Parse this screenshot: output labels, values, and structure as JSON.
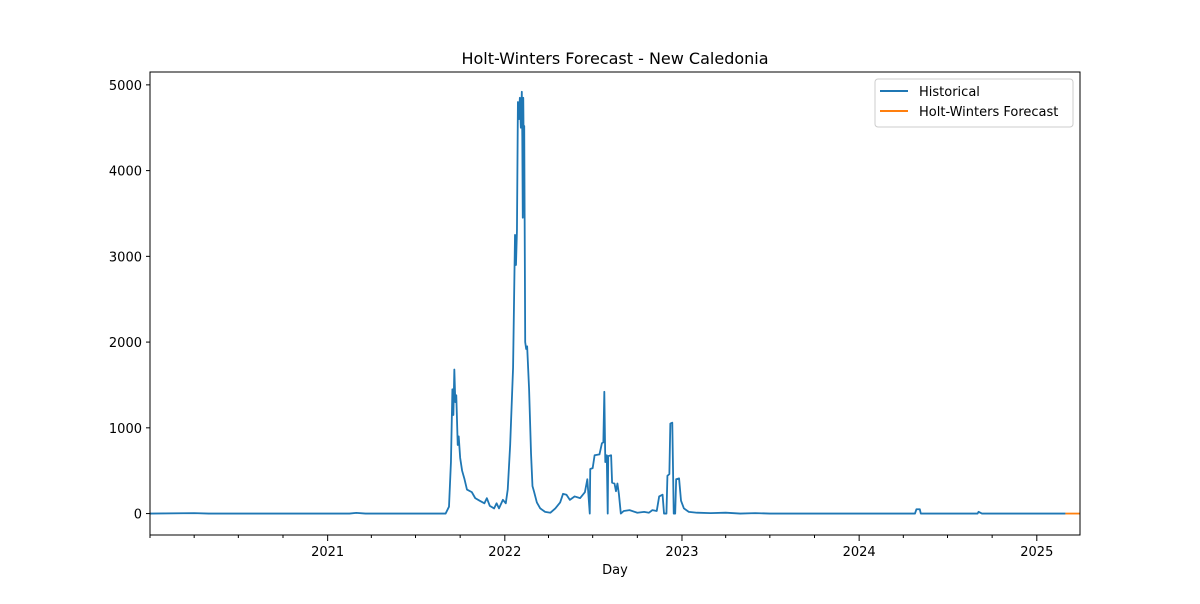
{
  "chart_data": {
    "type": "line",
    "title": "Holt-Winters Forecast - New Caledonia",
    "xlabel": "Day",
    "ylabel": "",
    "x_axis_type": "date",
    "xlim": [
      "2020-01-01",
      "2025-03-31"
    ],
    "ylim": [
      -250,
      5150
    ],
    "x_ticks": [
      {
        "date": "2021-01-01",
        "label": "2021"
      },
      {
        "date": "2022-01-01",
        "label": "2022"
      },
      {
        "date": "2023-01-01",
        "label": "2023"
      },
      {
        "date": "2024-01-01",
        "label": "2024"
      },
      {
        "date": "2025-01-01",
        "label": "2025"
      }
    ],
    "y_ticks": [
      0,
      1000,
      2000,
      3000,
      4000,
      5000
    ],
    "y_tick_labels": [
      "0",
      "1000",
      "2000",
      "3000",
      "4000",
      "5000"
    ],
    "grid": false,
    "legend_position": "top-right",
    "series": [
      {
        "name": "Historical",
        "color": "#1f77b4",
        "points": [
          [
            "2020-01-01",
            0
          ],
          [
            "2020-04-01",
            5
          ],
          [
            "2020-05-01",
            0
          ],
          [
            "2020-09-01",
            0
          ],
          [
            "2021-02-15",
            0
          ],
          [
            "2021-03-01",
            8
          ],
          [
            "2021-03-20",
            0
          ],
          [
            "2021-09-01",
            0
          ],
          [
            "2021-09-08",
            80
          ],
          [
            "2021-09-12",
            600
          ],
          [
            "2021-09-15",
            1450
          ],
          [
            "2021-09-17",
            1150
          ],
          [
            "2021-09-19",
            1680
          ],
          [
            "2021-09-21",
            1300
          ],
          [
            "2021-09-23",
            1380
          ],
          [
            "2021-09-26",
            800
          ],
          [
            "2021-09-28",
            900
          ],
          [
            "2021-10-01",
            650
          ],
          [
            "2021-10-05",
            500
          ],
          [
            "2021-10-10",
            400
          ],
          [
            "2021-10-15",
            280
          ],
          [
            "2021-10-25",
            250
          ],
          [
            "2021-11-01",
            180
          ],
          [
            "2021-11-10",
            150
          ],
          [
            "2021-11-20",
            120
          ],
          [
            "2021-11-25",
            180
          ],
          [
            "2021-12-01",
            90
          ],
          [
            "2021-12-10",
            60
          ],
          [
            "2021-12-15",
            120
          ],
          [
            "2021-12-20",
            60
          ],
          [
            "2021-12-28",
            160
          ],
          [
            "2022-01-03",
            120
          ],
          [
            "2022-01-07",
            280
          ],
          [
            "2022-01-12",
            800
          ],
          [
            "2022-01-18",
            1700
          ],
          [
            "2022-01-22",
            3250
          ],
          [
            "2022-01-24",
            2900
          ],
          [
            "2022-01-26",
            3300
          ],
          [
            "2022-01-28",
            4800
          ],
          [
            "2022-01-30",
            4600
          ],
          [
            "2022-02-01",
            4850
          ],
          [
            "2022-02-03",
            4500
          ],
          [
            "2022-02-05",
            4920
          ],
          [
            "2022-02-06",
            4400
          ],
          [
            "2022-02-07",
            3450
          ],
          [
            "2022-02-08",
            4850
          ],
          [
            "2022-02-09",
            4200
          ],
          [
            "2022-02-10",
            4520
          ],
          [
            "2022-02-12",
            2000
          ],
          [
            "2022-02-14",
            1920
          ],
          [
            "2022-02-16",
            1950
          ],
          [
            "2022-02-20",
            1450
          ],
          [
            "2022-02-24",
            700
          ],
          [
            "2022-02-27",
            320
          ],
          [
            "2022-03-02",
            260
          ],
          [
            "2022-03-08",
            130
          ],
          [
            "2022-03-15",
            60
          ],
          [
            "2022-03-25",
            20
          ],
          [
            "2022-04-05",
            10
          ],
          [
            "2022-04-15",
            60
          ],
          [
            "2022-04-25",
            130
          ],
          [
            "2022-05-01",
            230
          ],
          [
            "2022-05-08",
            220
          ],
          [
            "2022-05-15",
            160
          ],
          [
            "2022-05-25",
            200
          ],
          [
            "2022-06-05",
            180
          ],
          [
            "2022-06-15",
            250
          ],
          [
            "2022-06-20",
            400
          ],
          [
            "2022-06-25",
            0
          ],
          [
            "2022-06-26",
            520
          ],
          [
            "2022-07-01",
            530
          ],
          [
            "2022-07-05",
            680
          ],
          [
            "2022-07-15",
            690
          ],
          [
            "2022-07-20",
            820
          ],
          [
            "2022-07-23",
            830
          ],
          [
            "2022-07-25",
            1420
          ],
          [
            "2022-07-27",
            600
          ],
          [
            "2022-07-30",
            680
          ],
          [
            "2022-08-01",
            0
          ],
          [
            "2022-08-02",
            670
          ],
          [
            "2022-08-08",
            680
          ],
          [
            "2022-08-10",
            360
          ],
          [
            "2022-08-15",
            350
          ],
          [
            "2022-08-18",
            260
          ],
          [
            "2022-08-21",
            350
          ],
          [
            "2022-08-24",
            230
          ],
          [
            "2022-08-28",
            0
          ],
          [
            "2022-09-03",
            30
          ],
          [
            "2022-09-15",
            40
          ],
          [
            "2022-10-01",
            10
          ],
          [
            "2022-10-15",
            20
          ],
          [
            "2022-10-25",
            10
          ],
          [
            "2022-11-01",
            40
          ],
          [
            "2022-11-10",
            30
          ],
          [
            "2022-11-15",
            200
          ],
          [
            "2022-11-22",
            220
          ],
          [
            "2022-11-25",
            0
          ],
          [
            "2022-11-30",
            0
          ],
          [
            "2022-12-02",
            440
          ],
          [
            "2022-12-06",
            460
          ],
          [
            "2022-12-08",
            1050
          ],
          [
            "2022-12-12",
            1060
          ],
          [
            "2022-12-15",
            0
          ],
          [
            "2022-12-18",
            0
          ],
          [
            "2022-12-20",
            400
          ],
          [
            "2022-12-26",
            410
          ],
          [
            "2022-12-30",
            150
          ],
          [
            "2023-01-05",
            60
          ],
          [
            "2023-01-15",
            20
          ],
          [
            "2023-02-01",
            10
          ],
          [
            "2023-03-01",
            5
          ],
          [
            "2023-04-01",
            10
          ],
          [
            "2023-05-01",
            0
          ],
          [
            "2023-06-01",
            5
          ],
          [
            "2023-07-01",
            0
          ],
          [
            "2024-04-25",
            0
          ],
          [
            "2024-04-28",
            50
          ],
          [
            "2024-05-05",
            50
          ],
          [
            "2024-05-07",
            0
          ],
          [
            "2024-09-01",
            0
          ],
          [
            "2024-09-03",
            20
          ],
          [
            "2024-09-10",
            0
          ],
          [
            "2025-03-01",
            0
          ]
        ]
      },
      {
        "name": "Holt-Winters Forecast",
        "color": "#ff7f0e",
        "points": [
          [
            "2025-03-01",
            0
          ],
          [
            "2025-03-31",
            0
          ]
        ]
      }
    ]
  }
}
